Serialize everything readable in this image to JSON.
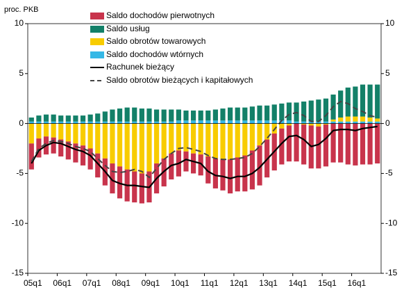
{
  "chart_data": {
    "type": "bar",
    "y_label": "proc. PKB",
    "categories": [
      "05q1",
      null,
      null,
      null,
      "06q1",
      null,
      null,
      null,
      "07q1",
      null,
      null,
      null,
      "08q1",
      null,
      null,
      null,
      "09q1",
      null,
      null,
      null,
      "10q1",
      null,
      null,
      null,
      "11q1",
      null,
      null,
      null,
      "12q1",
      null,
      null,
      null,
      "13q1",
      null,
      null,
      null,
      "14q1",
      null,
      null,
      null,
      "15q1",
      null,
      null,
      null,
      "16q1",
      null,
      null,
      null
    ],
    "ylim": [
      -15,
      10
    ],
    "yticks": [
      10,
      5,
      0,
      -5,
      -10,
      -15
    ],
    "series": [
      {
        "name": "Saldo dochodów pierwotnych",
        "color": "#c8344c",
        "values": [
          -2.6,
          -1.9,
          -1.8,
          -1.6,
          -1.7,
          -1.8,
          -1.9,
          -2.0,
          -2.1,
          -2.4,
          -2.7,
          -3.0,
          -3.2,
          -3.2,
          -3.1,
          -3.0,
          -3.1,
          -3.0,
          -2.8,
          -2.6,
          -2.6,
          -2.0,
          -2.0,
          -2.1,
          -2.7,
          -3.0,
          -3.1,
          -3.4,
          -3.4,
          -3.6,
          -3.9,
          -4.0,
          -3.8,
          -3.7,
          -3.6,
          -3.6,
          -3.8,
          -4.0,
          -4.3,
          -4.2,
          -4.2,
          -3.9,
          -3.9,
          -4.1,
          -4.2,
          -4.1,
          -4.1,
          -4.0
        ]
      },
      {
        "name": "Saldo usług",
        "color": "#138068",
        "values": [
          0.4,
          0.6,
          0.7,
          0.7,
          0.6,
          0.6,
          0.6,
          0.6,
          0.7,
          0.8,
          1.0,
          1.2,
          1.3,
          1.4,
          1.4,
          1.3,
          1.3,
          1.2,
          1.2,
          1.2,
          1.1,
          1.0,
          1.0,
          1.0,
          1.0,
          1.1,
          1.2,
          1.3,
          1.3,
          1.3,
          1.4,
          1.5,
          1.5,
          1.6,
          1.7,
          1.8,
          1.9,
          2.0,
          2.1,
          2.2,
          2.3,
          2.5,
          2.7,
          2.9,
          3.0,
          3.2,
          3.3,
          3.4
        ]
      },
      {
        "name": "Saldo obrotów towarowych",
        "color": "#f8cc00",
        "values": [
          -2.0,
          -1.5,
          -1.3,
          -1.4,
          -1.6,
          -1.8,
          -2.0,
          -2.2,
          -2.5,
          -3.0,
          -3.5,
          -4.0,
          -4.3,
          -4.6,
          -4.8,
          -5.0,
          -4.8,
          -4.0,
          -3.5,
          -3.0,
          -2.7,
          -2.8,
          -3.0,
          -3.1,
          -3.3,
          -3.5,
          -3.6,
          -3.6,
          -3.4,
          -3.2,
          -2.7,
          -2.2,
          -1.6,
          -1.0,
          -0.5,
          -0.2,
          0.0,
          -0.1,
          -0.2,
          -0.3,
          -0.1,
          0.2,
          0.4,
          0.5,
          0.5,
          0.5,
          0.4,
          0.3
        ]
      },
      {
        "name": "Saldo dochodów wtórnych",
        "color": "#35b8e6",
        "values": [
          0.2,
          0.2,
          0.2,
          0.2,
          0.2,
          0.2,
          0.2,
          0.2,
          0.2,
          0.2,
          0.2,
          0.2,
          0.2,
          0.2,
          0.2,
          0.2,
          0.2,
          0.2,
          0.2,
          0.2,
          0.3,
          0.3,
          0.3,
          0.3,
          0.3,
          0.3,
          0.3,
          0.3,
          0.3,
          0.3,
          0.3,
          0.3,
          0.3,
          0.3,
          0.3,
          0.3,
          0.2,
          0.2,
          0.2,
          0.2,
          0.2,
          0.2,
          0.2,
          0.2,
          0.2,
          0.2,
          0.2,
          0.2
        ]
      },
      {
        "name": "Rachunek bieżący",
        "type": "line",
        "color": "#000000",
        "values": [
          -4.0,
          -2.7,
          -2.2,
          -1.9,
          -2.0,
          -2.3,
          -2.6,
          -2.8,
          -3.2,
          -4.0,
          -4.8,
          -5.7,
          -6.0,
          -6.2,
          -6.2,
          -6.3,
          -6.4,
          -5.5,
          -4.8,
          -4.2,
          -4.0,
          -3.6,
          -3.8,
          -4.0,
          -4.8,
          -5.2,
          -5.3,
          -5.5,
          -5.3,
          -5.3,
          -5.0,
          -4.4,
          -3.6,
          -2.8,
          -2.0,
          -1.3,
          -1.2,
          -1.6,
          -2.3,
          -2.1,
          -1.5,
          -0.7,
          -0.6,
          -0.6,
          -0.7,
          -0.5,
          -0.4,
          -0.3
        ]
      },
      {
        "name": "Saldo obrotów bieżących i kapitałowych",
        "type": "line",
        "dash": true,
        "color": "#444444",
        "values": [
          -3.8,
          -2.5,
          -2.0,
          -1.7,
          -1.8,
          -2.0,
          -2.3,
          -2.5,
          -2.8,
          -3.5,
          -4.2,
          -4.8,
          -4.9,
          -4.8,
          -4.6,
          -4.8,
          -5.4,
          -4.5,
          -3.6,
          -3.0,
          -2.5,
          -2.4,
          -2.6,
          -2.8,
          -3.2,
          -3.5,
          -3.6,
          -3.6,
          -3.5,
          -3.4,
          -3.0,
          -2.3,
          -1.5,
          -0.6,
          0.3,
          0.9,
          1.1,
          0.8,
          0.2,
          0.2,
          0.8,
          1.7,
          2.2,
          2.0,
          1.5,
          1.2,
          0.8,
          0.6
        ]
      }
    ]
  }
}
